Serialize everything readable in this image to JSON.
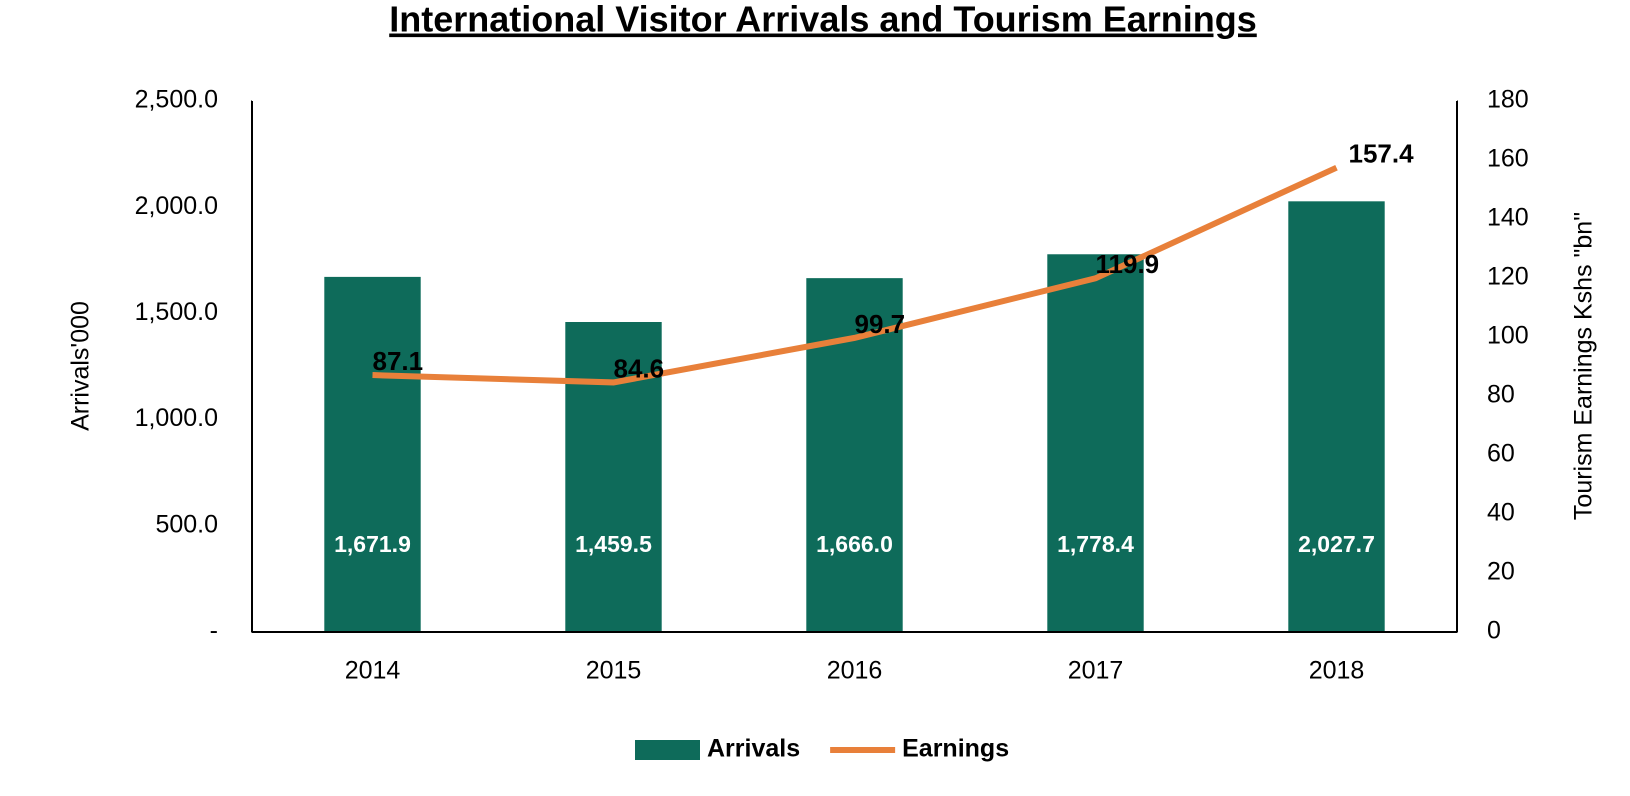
{
  "chart_data": {
    "type": "bar-line",
    "title": "International Visitor Arrivals and Tourism Earnings",
    "y_label": "Arrivals'000",
    "y2_label": "Tourism Earnings  Kshs \"bn\"",
    "categories": [
      "2014",
      "2015",
      "2016",
      "2017",
      "2018"
    ],
    "series": [
      {
        "name": "Arrivals",
        "type": "bar",
        "color": "#0e6b5a",
        "values": [
          1671.9,
          1459.5,
          1666.0,
          1778.4,
          2027.7
        ],
        "value_labels": [
          "1,671.9",
          "1,459.5",
          "1,666.0",
          "1,778.4",
          "2,027.7"
        ]
      },
      {
        "name": "Earnings",
        "type": "line",
        "axis": "y2",
        "color": "#e8803a",
        "values": [
          87.1,
          84.6,
          99.7,
          119.9,
          157.4
        ]
      }
    ],
    "ylim": [
      0,
      2500
    ],
    "yticks": [
      {
        "value": 0,
        "label": "-"
      },
      {
        "value": 500,
        "label": "500.0"
      },
      {
        "value": 1000,
        "label": "1,000.0"
      },
      {
        "value": 1500,
        "label": "1,500.0"
      },
      {
        "value": 2000,
        "label": "2,000.0"
      },
      {
        "value": 2500,
        "label": "2,500.0"
      }
    ],
    "y2lim": [
      0,
      180
    ],
    "y2ticks": [
      0,
      20,
      40,
      60,
      80,
      100,
      120,
      140,
      160,
      180
    ],
    "legend": "bottom"
  }
}
